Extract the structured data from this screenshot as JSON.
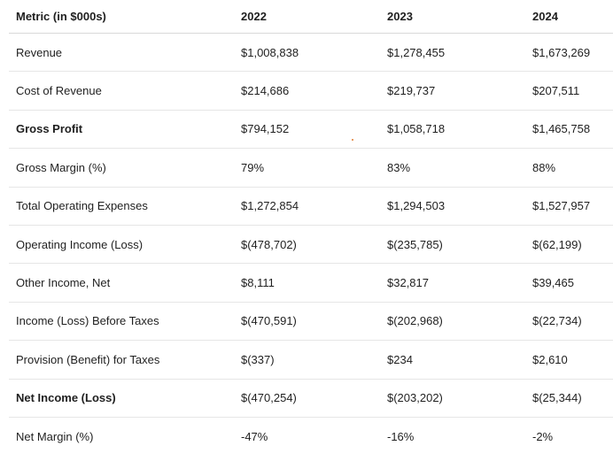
{
  "table": {
    "headers": [
      "Metric (in $000s)",
      "2022",
      "2023",
      "2024"
    ],
    "rows": [
      {
        "metric": "Revenue",
        "y2022": "$1,008,838",
        "y2023": "$1,278,455",
        "y2024": "$1,673,269",
        "bold": false
      },
      {
        "metric": "Cost of Revenue",
        "y2022": "$214,686",
        "y2023": "$219,737",
        "y2024": "$207,511",
        "bold": false
      },
      {
        "metric": "Gross Profit",
        "y2022": "$794,152",
        "y2023": "$1,058,718",
        "y2024": "$1,465,758",
        "bold": true
      },
      {
        "metric": "Gross Margin (%)",
        "y2022": "79%",
        "y2023": "83%",
        "y2024": "88%",
        "bold": false
      },
      {
        "metric": "Total Operating Expenses",
        "y2022": "$1,272,854",
        "y2023": "$1,294,503",
        "y2024": "$1,527,957",
        "bold": false
      },
      {
        "metric": "Operating Income (Loss)",
        "y2022": "$(478,702)",
        "y2023": "$(235,785)",
        "y2024": "$(62,199)",
        "bold": false
      },
      {
        "metric": "Other Income, Net",
        "y2022": "$8,111",
        "y2023": "$32,817",
        "y2024": "$39,465",
        "bold": false
      },
      {
        "metric": "Income (Loss) Before Taxes",
        "y2022": "$(470,591)",
        "y2023": "$(202,968)",
        "y2024": "$(22,734)",
        "bold": false
      },
      {
        "metric": "Provision (Benefit) for Taxes",
        "y2022": "$(337)",
        "y2023": "$234",
        "y2024": "$2,610",
        "bold": false
      },
      {
        "metric": "Net Income (Loss)",
        "y2022": "$(470,254)",
        "y2023": "$(203,202)",
        "y2024": "$(25,344)",
        "bold": true
      },
      {
        "metric": "Net Margin (%)",
        "y2022": "-47%",
        "y2023": "-16%",
        "y2024": "-2%",
        "bold": false
      }
    ]
  }
}
